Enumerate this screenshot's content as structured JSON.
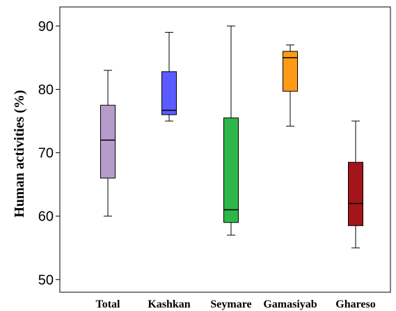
{
  "chart_data": {
    "type": "box",
    "ylabel": "Human activities (%)",
    "ylim": [
      48,
      93
    ],
    "yticks": [
      50,
      60,
      70,
      80,
      90
    ],
    "grid": false,
    "categories": [
      "Total",
      "Kashkan",
      "Seymare",
      "Gamasiyab",
      "Ghareso"
    ],
    "series": [
      {
        "category": "Total",
        "min": 60,
        "q1": 66,
        "median": 72,
        "q3": 77.5,
        "max": 83,
        "color": "#b59cca"
      },
      {
        "category": "Kashkan",
        "min": 75,
        "q1": 76,
        "median": 76.7,
        "q3": 82.8,
        "max": 89,
        "color": "#5a5cff"
      },
      {
        "category": "Seymare",
        "min": 57,
        "q1": 59,
        "median": 61,
        "q3": 75.5,
        "max": 90,
        "color": "#2fb64a"
      },
      {
        "category": "Gamasiyab",
        "min": 74.2,
        "q1": 79.7,
        "median": 85,
        "q3": 86,
        "max": 87,
        "color": "#ff9a17"
      },
      {
        "category": "Ghareso",
        "min": 55,
        "q1": 58.5,
        "median": 62,
        "q3": 68.5,
        "max": 75,
        "color": "#a3141b"
      }
    ]
  }
}
